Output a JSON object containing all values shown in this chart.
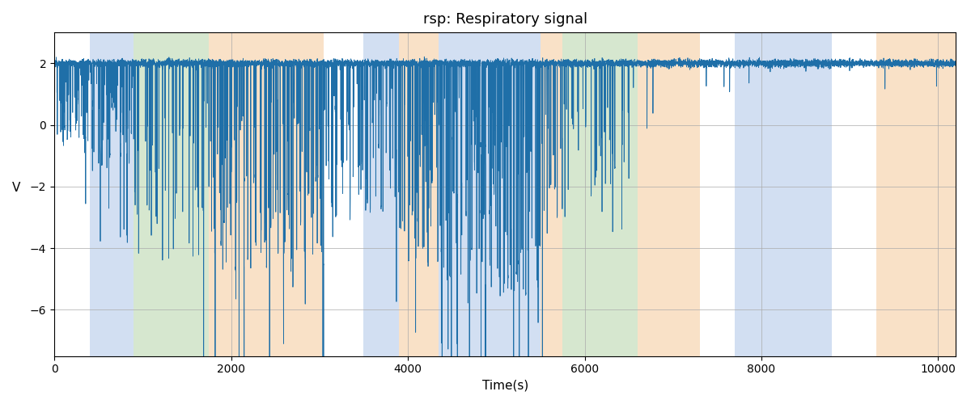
{
  "title": "rsp: Respiratory signal",
  "xlabel": "Time(s)",
  "ylabel": "V",
  "xlim": [
    0,
    10200
  ],
  "ylim": [
    -7.5,
    3.0
  ],
  "line_color": "#1f6fa8",
  "line_width": 0.6,
  "grid_color": "#aaaaaa",
  "colored_bands": [
    {
      "start": 400,
      "end": 900,
      "color": "#aec6e8",
      "alpha": 0.55
    },
    {
      "start": 900,
      "end": 1750,
      "color": "#b5d5a8",
      "alpha": 0.55
    },
    {
      "start": 1750,
      "end": 3050,
      "color": "#f5c999",
      "alpha": 0.55
    },
    {
      "start": 3500,
      "end": 3900,
      "color": "#aec6e8",
      "alpha": 0.55
    },
    {
      "start": 3900,
      "end": 4350,
      "color": "#f5c999",
      "alpha": 0.55
    },
    {
      "start": 4350,
      "end": 5500,
      "color": "#aec6e8",
      "alpha": 0.55
    },
    {
      "start": 5500,
      "end": 5750,
      "color": "#f5c999",
      "alpha": 0.55
    },
    {
      "start": 5750,
      "end": 6600,
      "color": "#b5d5a8",
      "alpha": 0.55
    },
    {
      "start": 6600,
      "end": 7300,
      "color": "#f5c999",
      "alpha": 0.55
    },
    {
      "start": 7700,
      "end": 8800,
      "color": "#aec6e8",
      "alpha": 0.55
    },
    {
      "start": 9300,
      "end": 10200,
      "color": "#f5c999",
      "alpha": 0.55
    }
  ],
  "xticks": [
    0,
    2000,
    4000,
    6000,
    8000,
    10000
  ],
  "yticks": [
    2,
    0,
    -2,
    -4,
    -6
  ],
  "seed": 12345,
  "n_points": 10200,
  "signal_baseline": 2.0,
  "noise_std": 0.06
}
